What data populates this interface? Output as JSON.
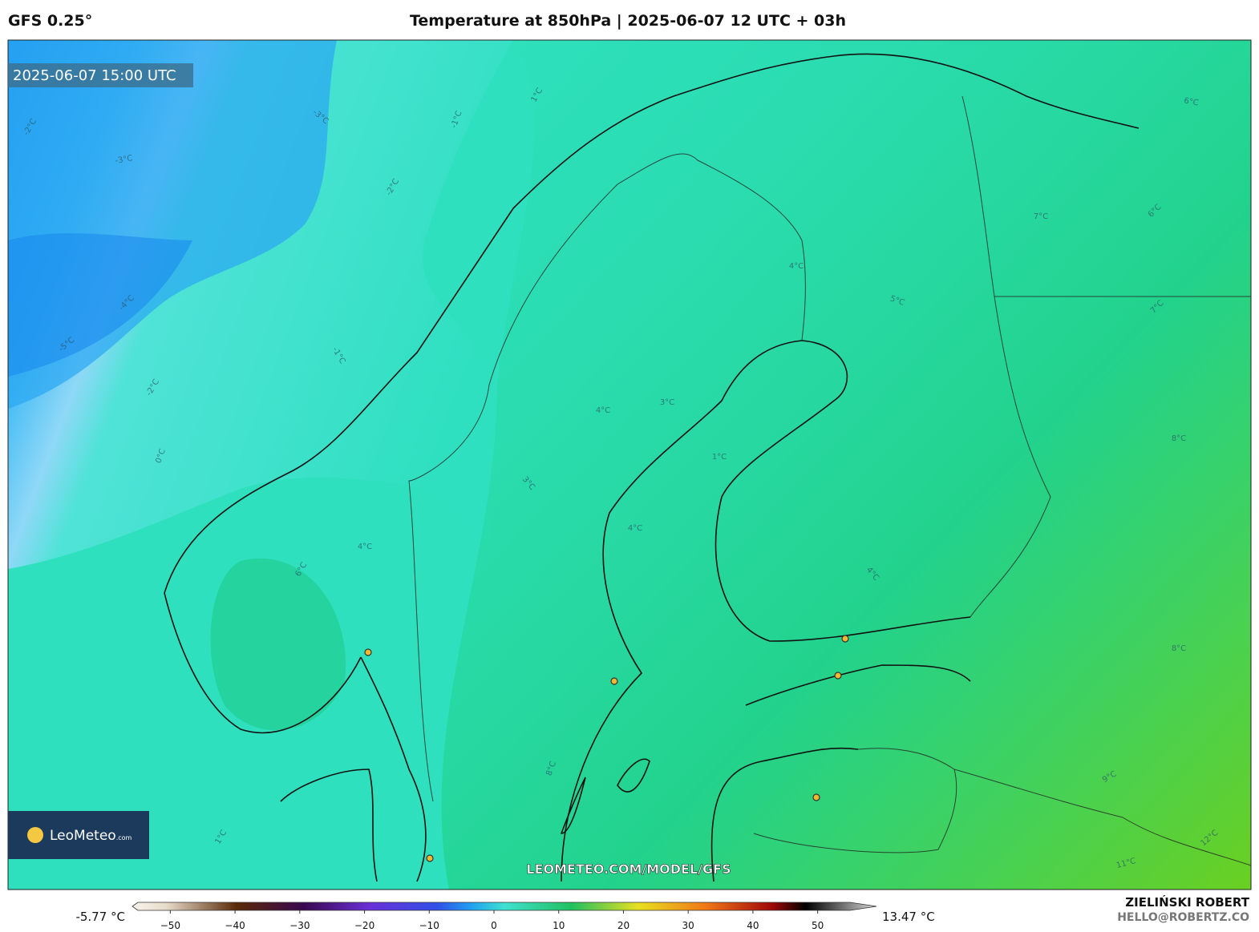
{
  "header": {
    "model": "GFS 0.25°",
    "title": "Temperature at 850hPa | 2025-06-07 12 UTC + 03h"
  },
  "map": {
    "valid_time": "2025-06-07 15:00 UTC",
    "watermark": "LEOMETEO.COM/MODEL/GFS",
    "logo": {
      "name": "LeoMeteo",
      "suffix": ".com"
    },
    "contour_labels": [
      "-2°C",
      "-3°C",
      "-3°C",
      "-1°C",
      "-2°C",
      "-4°C",
      "-5°C",
      "-1°C",
      "-2°C",
      "0°C",
      "1°C",
      "6°C",
      "6°C",
      "7°C",
      "7°C",
      "5°C",
      "4°C",
      "8°C",
      "4°C",
      "3°C",
      "1°C",
      "3°C",
      "4°C",
      "4°C",
      "6°C",
      "4°C",
      "8°C",
      "9°C",
      "11°C",
      "12°C",
      "1°C",
      "8°C"
    ]
  },
  "colorbar": {
    "min_label": "-5.77 °C",
    "max_label": "13.47 °C",
    "lim": [
      -55,
      55
    ],
    "ticks": [
      {
        "value": -50,
        "label": "−50"
      },
      {
        "value": -40,
        "label": "−40"
      },
      {
        "value": -30,
        "label": "−30"
      },
      {
        "value": -20,
        "label": "−20"
      },
      {
        "value": -10,
        "label": "−10"
      },
      0,
      10,
      20,
      30,
      40,
      50
    ]
  },
  "footer": {
    "author": "ZIELIŃSKI ROBERT",
    "email": "HELLO@ROBERTZ.CO"
  }
}
